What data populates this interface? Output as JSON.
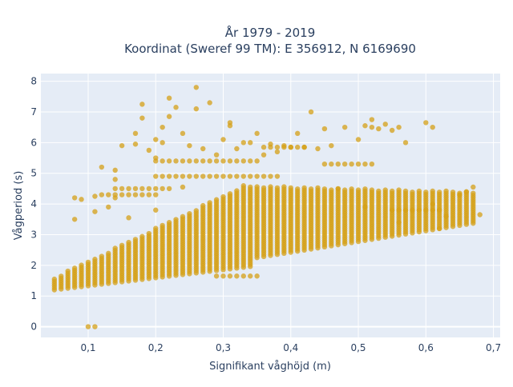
{
  "chart_data": {
    "type": "scatter",
    "title_line1": "År 1979 - 2019",
    "title_line2": "Koordinat (Sweref 99 TM): E 356912, N 6169690",
    "xlabel": "Signifikant våghöjd (m)",
    "ylabel": "Vågperiod (s)",
    "xlim": [
      0.03,
      0.71
    ],
    "ylim": [
      -0.35,
      8.25
    ],
    "xticks": [
      0.1,
      0.2,
      0.3,
      0.4,
      0.5,
      0.6,
      0.7
    ],
    "xtick_labels": [
      "0,1",
      "0,2",
      "0,3",
      "0,4",
      "0,5",
      "0,6",
      "0,7"
    ],
    "yticks": [
      0,
      1,
      2,
      3,
      4,
      5,
      6,
      7,
      8
    ],
    "ytick_labels": [
      "0",
      "1",
      "2",
      "3",
      "4",
      "5",
      "6",
      "7",
      "8"
    ],
    "grid": true,
    "marker_color": "#d4a017",
    "plot_bg": "#e5ecf6",
    "main_band": {
      "x_start": 0.05,
      "x_end": 0.67,
      "x_step": 0.01,
      "low_start": 1.2,
      "low_slope": 3.5,
      "high_start": 1.6,
      "high_peak_x": 0.33,
      "high_peak": 4.6,
      "high_end": 4.4
    },
    "points": [
      [
        0.1,
        0.0
      ],
      [
        0.11,
        0.0
      ],
      [
        0.08,
        3.5
      ],
      [
        0.08,
        4.2
      ],
      [
        0.09,
        4.15
      ],
      [
        0.11,
        4.25
      ],
      [
        0.11,
        3.75
      ],
      [
        0.12,
        5.2
      ],
      [
        0.14,
        4.8
      ],
      [
        0.14,
        5.1
      ],
      [
        0.15,
        5.9
      ],
      [
        0.17,
        5.95
      ],
      [
        0.17,
        6.3
      ],
      [
        0.18,
        7.25
      ],
      [
        0.18,
        6.8
      ],
      [
        0.19,
        5.75
      ],
      [
        0.2,
        6.1
      ],
      [
        0.2,
        5.5
      ],
      [
        0.21,
        6.5
      ],
      [
        0.21,
        6.0
      ],
      [
        0.22,
        7.45
      ],
      [
        0.22,
        6.85
      ],
      [
        0.23,
        7.15
      ],
      [
        0.24,
        6.3
      ],
      [
        0.25,
        5.9
      ],
      [
        0.26,
        7.8
      ],
      [
        0.26,
        7.1
      ],
      [
        0.27,
        5.8
      ],
      [
        0.28,
        7.3
      ],
      [
        0.29,
        5.6
      ],
      [
        0.3,
        6.1
      ],
      [
        0.31,
        6.55
      ],
      [
        0.31,
        6.65
      ],
      [
        0.32,
        5.8
      ],
      [
        0.33,
        6.0
      ],
      [
        0.34,
        6.0
      ],
      [
        0.35,
        6.3
      ],
      [
        0.36,
        5.6
      ],
      [
        0.37,
        5.95
      ],
      [
        0.38,
        5.7
      ],
      [
        0.39,
        5.9
      ],
      [
        0.4,
        5.85
      ],
      [
        0.41,
        6.3
      ],
      [
        0.42,
        5.85
      ],
      [
        0.43,
        7.0
      ],
      [
        0.44,
        5.8
      ],
      [
        0.45,
        6.45
      ],
      [
        0.46,
        5.9
      ],
      [
        0.48,
        6.5
      ],
      [
        0.5,
        6.1
      ],
      [
        0.51,
        6.55
      ],
      [
        0.52,
        6.75
      ],
      [
        0.52,
        6.5
      ],
      [
        0.53,
        6.45
      ],
      [
        0.54,
        6.6
      ],
      [
        0.55,
        6.4
      ],
      [
        0.56,
        6.5
      ],
      [
        0.57,
        6.0
      ],
      [
        0.6,
        6.65
      ],
      [
        0.61,
        6.5
      ],
      [
        0.13,
        3.9
      ],
      [
        0.14,
        4.2
      ],
      [
        0.16,
        3.55
      ],
      [
        0.2,
        3.8
      ],
      [
        0.24,
        4.55
      ],
      [
        0.47,
        4.5
      ],
      [
        0.51,
        3.9
      ],
      [
        0.56,
        3.4
      ],
      [
        0.61,
        4.0
      ],
      [
        0.63,
        3.6
      ],
      [
        0.66,
        4.4
      ],
      [
        0.67,
        4.55
      ],
      [
        0.68,
        3.65
      ],
      [
        0.62,
        3.2
      ],
      [
        0.65,
        4.3
      ]
    ],
    "row_bands": [
      {
        "y": 4.5,
        "x_from": 0.14,
        "x_to": 0.22,
        "step": 0.01
      },
      {
        "y": 4.9,
        "x_from": 0.2,
        "x_to": 0.38,
        "step": 0.01
      },
      {
        "y": 5.4,
        "x_from": 0.2,
        "x_to": 0.35,
        "step": 0.01
      },
      {
        "y": 5.85,
        "x_from": 0.36,
        "x_to": 0.42,
        "step": 0.01
      },
      {
        "y": 5.3,
        "x_from": 0.45,
        "x_to": 0.52,
        "step": 0.01
      },
      {
        "y": 4.3,
        "x_from": 0.12,
        "x_to": 0.2,
        "step": 0.01
      },
      {
        "y": 3.8,
        "x_from": 0.55,
        "x_to": 0.62,
        "step": 0.01
      },
      {
        "y": 1.65,
        "x_from": 0.29,
        "x_to": 0.35,
        "step": 0.01
      }
    ]
  }
}
